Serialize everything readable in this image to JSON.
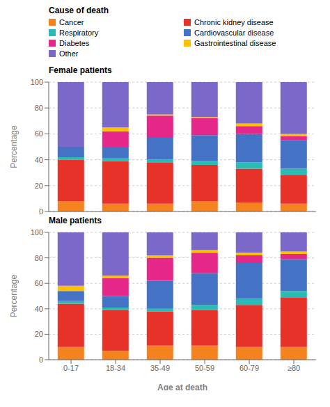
{
  "chart_data": [
    {
      "type": "bar",
      "stacked": true,
      "title": "Female patients",
      "legend_title": "Cause of death",
      "legend": "top",
      "categories": [
        "0-17",
        "18-34",
        "35-49",
        "50-59",
        "60-79",
        "≥80"
      ],
      "series": [
        {
          "name": "Cancer",
          "color": "#F4831F",
          "values": [
            8,
            6,
            6,
            8,
            7,
            6
          ]
        },
        {
          "name": "Chronic kidney disease",
          "color": "#E63228",
          "values": [
            32,
            33,
            32,
            28,
            26,
            22
          ]
        },
        {
          "name": "Respiratory",
          "color": "#2ABCB4",
          "values": [
            2,
            2,
            2,
            3,
            5,
            5
          ]
        },
        {
          "name": "Cardiovascular disease",
          "color": "#4472C4",
          "values": [
            8,
            9,
            17,
            20,
            22,
            22
          ]
        },
        {
          "name": "Diabetes",
          "color": "#E6278A",
          "values": [
            0,
            12,
            17,
            13,
            6,
            3
          ]
        },
        {
          "name": "Gastrointestinal disease",
          "color": "#FFC000",
          "values": [
            0,
            3,
            1,
            1,
            2,
            2
          ]
        },
        {
          "name": "Other",
          "color": "#7B68C8",
          "values": [
            50,
            35,
            25,
            27,
            32,
            40
          ]
        }
      ],
      "ylabel": "Percentage",
      "ylim": [
        0,
        100
      ],
      "yticks": [
        0,
        20,
        40,
        60,
        80,
        100
      ],
      "grid": true,
      "tick_labels": "y"
    },
    {
      "type": "bar",
      "stacked": true,
      "title": "Male patients",
      "categories": [
        "0-17",
        "18-34",
        "35-49",
        "50-59",
        "60-79",
        "≥80"
      ],
      "series": [
        {
          "name": "Cancer",
          "color": "#F4831F",
          "values": [
            10,
            7,
            11,
            11,
            10,
            10
          ]
        },
        {
          "name": "Chronic kidney disease",
          "color": "#E63228",
          "values": [
            34,
            32,
            27,
            28,
            33,
            39
          ]
        },
        {
          "name": "Respiratory",
          "color": "#2ABCB4",
          "values": [
            2,
            2,
            2,
            4,
            5,
            5
          ]
        },
        {
          "name": "Cardiovascular disease",
          "color": "#4472C4",
          "values": [
            8,
            9,
            22,
            25,
            28,
            25
          ]
        },
        {
          "name": "Diabetes",
          "color": "#E6278A",
          "values": [
            0,
            14,
            18,
            16,
            6,
            4
          ]
        },
        {
          "name": "Gastrointestinal disease",
          "color": "#FFC000",
          "values": [
            4,
            2,
            2,
            2,
            2,
            2
          ]
        },
        {
          "name": "Other",
          "color": "#7B68C8",
          "values": [
            42,
            34,
            18,
            14,
            16,
            15
          ]
        }
      ],
      "xlabel": "Age at death",
      "ylabel": "Percentage",
      "ylim": [
        0,
        100
      ],
      "yticks": [
        0,
        20,
        40,
        60,
        80,
        100
      ],
      "grid": true
    }
  ]
}
